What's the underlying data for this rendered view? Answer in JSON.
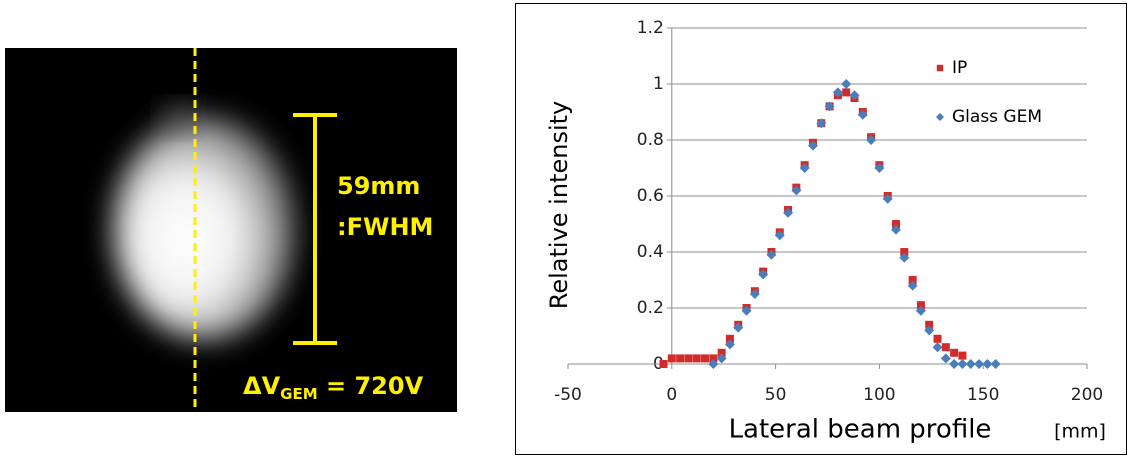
{
  "image": {
    "scale_label": "59mm",
    "scale_note": ":FWHM",
    "voltage_symbol": "ΔV",
    "voltage_sub": "GEM",
    "voltage_value": " = 720V"
  },
  "chart_data": {
    "type": "scatter",
    "xlabel": "Lateral beam profile",
    "xunit": "[mm]",
    "ylabel": "Relative intensity",
    "xlim": [
      -50,
      200
    ],
    "xticks": [
      -50,
      0,
      50,
      100,
      150,
      200
    ],
    "ylim": [
      0,
      1.2
    ],
    "yticks": [
      0,
      0.2,
      0.4,
      0.6,
      0.8,
      1,
      1.2
    ],
    "grid": true,
    "legend": "upper right",
    "series": [
      {
        "name": "IP",
        "color": "#d22b2b",
        "marker": "square",
        "x": [
          -4,
          0,
          4,
          8,
          12,
          16,
          20,
          24,
          28,
          32,
          36,
          40,
          44,
          48,
          52,
          56,
          60,
          64,
          68,
          72,
          76,
          80,
          84,
          88,
          92,
          96,
          100,
          104,
          108,
          112,
          116,
          120,
          124,
          128,
          132,
          136,
          140
        ],
        "values": [
          0.0,
          0.02,
          0.02,
          0.02,
          0.02,
          0.02,
          0.02,
          0.04,
          0.09,
          0.14,
          0.2,
          0.26,
          0.33,
          0.4,
          0.47,
          0.55,
          0.63,
          0.71,
          0.79,
          0.86,
          0.92,
          0.96,
          0.97,
          0.95,
          0.9,
          0.81,
          0.71,
          0.6,
          0.5,
          0.4,
          0.3,
          0.21,
          0.14,
          0.09,
          0.06,
          0.04,
          0.03
        ]
      },
      {
        "name": "Glass GEM",
        "color": "#4a7ebb",
        "marker": "diamond",
        "x": [
          20,
          24,
          28,
          32,
          36,
          40,
          44,
          48,
          52,
          56,
          60,
          64,
          68,
          72,
          76,
          80,
          84,
          88,
          92,
          96,
          100,
          104,
          108,
          112,
          116,
          120,
          124,
          128,
          132,
          136,
          140,
          144,
          148,
          152,
          156
        ],
        "values": [
          0.0,
          0.02,
          0.07,
          0.13,
          0.19,
          0.25,
          0.32,
          0.39,
          0.46,
          0.54,
          0.62,
          0.7,
          0.78,
          0.86,
          0.92,
          0.97,
          1.0,
          0.96,
          0.89,
          0.8,
          0.7,
          0.59,
          0.48,
          0.38,
          0.28,
          0.19,
          0.12,
          0.06,
          0.02,
          0.0,
          0.0,
          0.0,
          0.0,
          0.0,
          0.0
        ]
      }
    ]
  }
}
